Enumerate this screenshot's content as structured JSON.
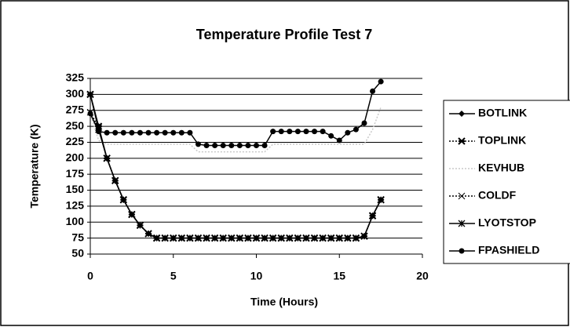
{
  "chart_data": {
    "type": "line",
    "title": "Temperature Profile Test 7",
    "xlabel": "Time (Hours)",
    "ylabel": "Temperature (K)",
    "x": [
      0,
      0.5,
      1,
      1.5,
      2,
      2.5,
      3,
      3.5,
      4,
      4.5,
      5,
      5.5,
      6,
      6.5,
      7,
      7.5,
      8,
      8.5,
      9,
      9.5,
      10,
      10.5,
      11,
      11.5,
      12,
      12.5,
      13,
      13.5,
      14,
      14.5,
      15,
      15.5,
      16,
      16.5,
      17,
      17.5
    ],
    "xlim": [
      0,
      20
    ],
    "xticks": [
      0,
      5,
      10,
      15,
      20
    ],
    "ylim": [
      50,
      325
    ],
    "yticks": [
      50,
      75,
      100,
      125,
      150,
      175,
      200,
      225,
      250,
      275,
      300,
      325
    ],
    "grid": true,
    "legend": "right",
    "series": [
      {
        "name": "BOTLINK",
        "color": "#000000",
        "marker": "diamond",
        "dash": "solid",
        "values": [
          300,
          250,
          200,
          165,
          135,
          112,
          95,
          82,
          75,
          75,
          75,
          75,
          75,
          75,
          75,
          75,
          75,
          75,
          75,
          75,
          75,
          75,
          75,
          75,
          75,
          75,
          75,
          75,
          75,
          75,
          75,
          75,
          75,
          78,
          110,
          135
        ]
      },
      {
        "name": "TOPLINK",
        "color": "#000000",
        "marker": "square",
        "dash": "dotted",
        "values": [
          300,
          250,
          200,
          165,
          135,
          112,
          95,
          82,
          75,
          75,
          75,
          75,
          75,
          75,
          75,
          75,
          75,
          75,
          75,
          75,
          75,
          75,
          75,
          75,
          75,
          75,
          75,
          75,
          75,
          75,
          75,
          75,
          75,
          78,
          110,
          135
        ]
      },
      {
        "name": "KEVHUB",
        "color": "#c8c8c8",
        "marker": "none",
        "dash": "dotted",
        "values": [
          270,
          228,
          222,
          222,
          222,
          222,
          222,
          222,
          222,
          222,
          222,
          222,
          222,
          210,
          210,
          210,
          210,
          210,
          210,
          210,
          210,
          210,
          222,
          222,
          222,
          222,
          222,
          222,
          222,
          222,
          222,
          222,
          222,
          222,
          245,
          280
        ]
      },
      {
        "name": "COLDF",
        "color": "#000000",
        "marker": "x",
        "dash": "dotted",
        "values": [
          272,
          248,
          200,
          165,
          135,
          112,
          95,
          82,
          75,
          75,
          75,
          75,
          75,
          75,
          75,
          75,
          75,
          75,
          75,
          75,
          75,
          75,
          75,
          75,
          75,
          75,
          75,
          75,
          75,
          75,
          75,
          75,
          75,
          78,
          110,
          135
        ]
      },
      {
        "name": "LYOTSTOP",
        "color": "#000000",
        "marker": "star",
        "dash": "solid",
        "values": [
          300,
          245,
          200,
          165,
          135,
          112,
          95,
          82,
          75,
          75,
          75,
          75,
          75,
          75,
          75,
          75,
          75,
          75,
          75,
          75,
          75,
          75,
          75,
          75,
          75,
          75,
          75,
          75,
          75,
          75,
          75,
          75,
          75,
          78,
          110,
          135
        ]
      },
      {
        "name": "FPASHIELD",
        "color": "#000000",
        "marker": "circle",
        "dash": "solid",
        "values": [
          270,
          242,
          240,
          240,
          240,
          240,
          240,
          240,
          240,
          240,
          240,
          240,
          240,
          222,
          220,
          220,
          220,
          220,
          220,
          220,
          220,
          220,
          242,
          242,
          242,
          242,
          242,
          242,
          242,
          235,
          228,
          240,
          245,
          255,
          305,
          320
        ]
      }
    ]
  }
}
